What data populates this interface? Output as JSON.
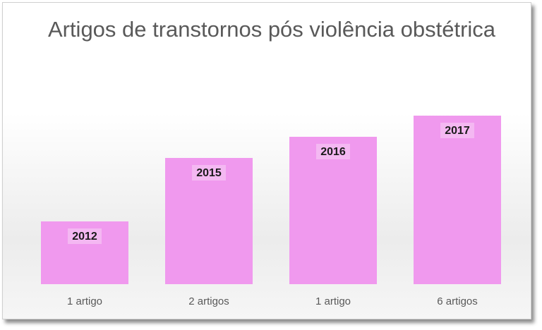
{
  "chart_data": {
    "type": "bar",
    "title": "Artigos de transtornos pós violência obstétrica",
    "categories": [
      "1 artigo",
      "2 artigos",
      "1 artigo",
      "6 artigos"
    ],
    "values": [
      1,
      2,
      1,
      6
    ],
    "data_labels": [
      "2012",
      "2015",
      "2016",
      "2017"
    ],
    "xlabel": "",
    "ylabel": "",
    "grid": false,
    "legend": "none",
    "bar_color": "#f099ee"
  }
}
